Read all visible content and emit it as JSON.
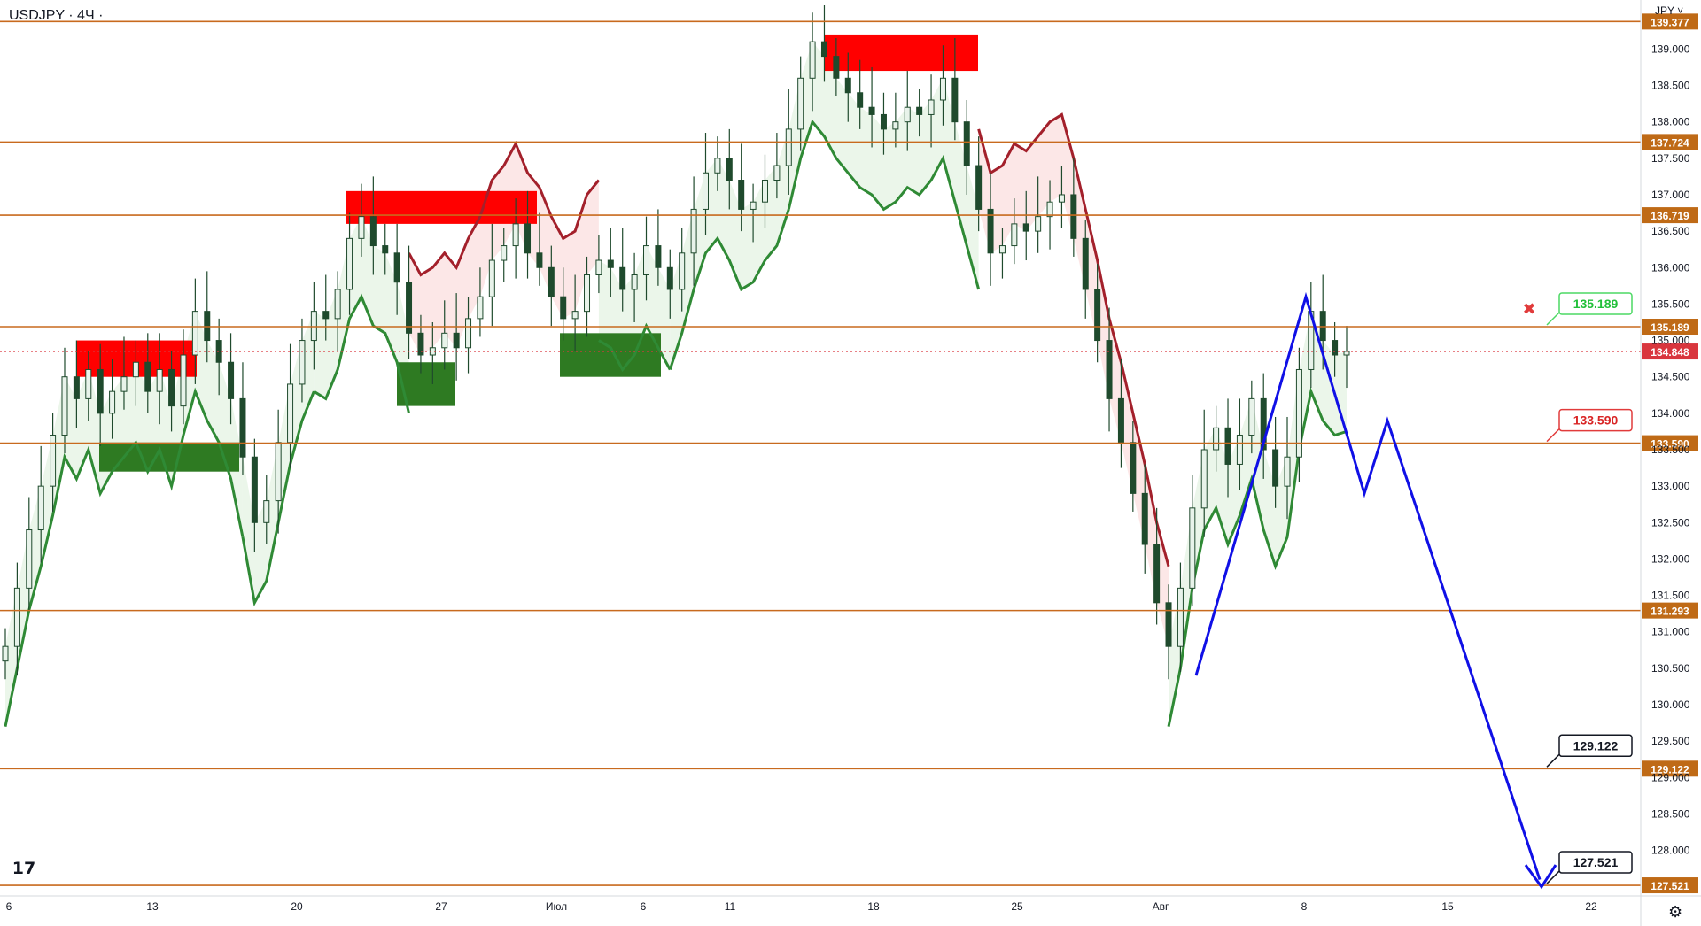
{
  "header": {
    "title": "USDJPY · 4Ч ·",
    "currency": "JPY ˅"
  },
  "colors": {
    "level_line": "#c86a1e",
    "level_label_bg": "#bf6a16",
    "supertrend_up": "#2f8a35",
    "supertrend_down": "#a3202b",
    "fill_up": "#e7f4e6",
    "fill_down": "#fbe3e3",
    "supply_zone": "#ff0000",
    "demand_zone": "#2e7a22",
    "candle": "#1f4a2d",
    "projection": "#1010e6",
    "current_price": "#d9363e"
  },
  "chart_data": {
    "type": "candlestick",
    "symbol": "USDJPY",
    "timeframe": "4Ч",
    "currency": "JPY",
    "ylim": [
      127.4,
      139.6
    ],
    "x_ticks": [
      "6",
      "13",
      "20",
      "27",
      "Июл",
      "6",
      "11",
      "18",
      "25",
      "Авг",
      "8",
      "15",
      "22"
    ],
    "y_ticks": [
      "139.000",
      "138.500",
      "138.000",
      "137.500",
      "137.000",
      "136.500",
      "136.000",
      "135.500",
      "135.000",
      "134.500",
      "134.000",
      "133.500",
      "133.000",
      "132.500",
      "132.000",
      "131.500",
      "131.000",
      "130.500",
      "130.000",
      "129.500",
      "129.000",
      "128.500",
      "128.000"
    ],
    "levels": [
      "139.377",
      "137.724",
      "136.719",
      "135.189",
      "133.590",
      "131.293",
      "129.122",
      "127.521"
    ],
    "current_price": "134.848",
    "price_close": [
      130.8,
      131.6,
      132.4,
      133.0,
      133.7,
      134.5,
      134.2,
      134.6,
      134.0,
      134.3,
      134.5,
      134.7,
      134.3,
      134.6,
      134.1,
      134.8,
      135.4,
      135.0,
      134.7,
      134.2,
      133.4,
      132.5,
      132.8,
      133.6,
      134.4,
      135.0,
      135.4,
      135.3,
      135.7,
      136.4,
      136.7,
      136.3,
      136.2,
      135.8,
      135.1,
      134.8,
      134.9,
      135.1,
      134.9,
      135.3,
      135.6,
      136.1,
      136.3,
      136.6,
      136.2,
      136.0,
      135.6,
      135.3,
      135.4,
      135.9,
      136.1,
      136.0,
      135.7,
      135.9,
      136.3,
      136.0,
      135.7,
      136.2,
      136.8,
      137.3,
      137.5,
      137.2,
      136.8,
      136.9,
      137.2,
      137.4,
      137.9,
      138.6,
      139.1,
      138.9,
      138.6,
      138.4,
      138.2,
      138.1,
      137.9,
      138.0,
      138.2,
      138.1,
      138.3,
      138.6,
      138.0,
      137.4,
      136.8,
      136.2,
      136.3,
      136.6,
      136.5,
      136.7,
      136.9,
      137.0,
      136.4,
      135.7,
      135.0,
      134.2,
      133.6,
      132.9,
      132.2,
      131.4,
      130.8,
      131.6,
      132.7,
      133.5,
      133.8,
      133.3,
      133.7,
      134.2,
      133.5,
      133.0,
      133.4,
      134.6,
      135.4,
      135.0,
      134.8,
      134.85
    ],
    "supply_zones": [
      [
        134.5,
        135.0
      ],
      [
        136.6,
        137.05
      ],
      [
        138.7,
        139.2
      ]
    ],
    "demand_zones": [
      [
        133.2,
        133.6
      ],
      [
        134.1,
        134.7
      ],
      [
        134.5,
        135.1
      ]
    ],
    "projection_path": [
      130.4,
      135.6,
      132.9,
      133.9,
      127.6
    ],
    "signals": [
      {
        "label": "135.189",
        "kind": "target-up"
      },
      {
        "label": "133.590",
        "kind": "stop"
      },
      {
        "label": "129.122",
        "kind": "target"
      },
      {
        "label": "127.521",
        "kind": "target"
      }
    ]
  }
}
